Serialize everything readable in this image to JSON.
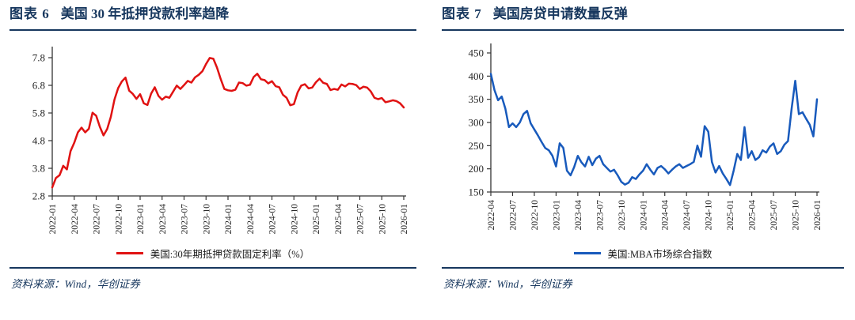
{
  "colors": {
    "title_navy": "#17375e",
    "series_red": "#e01212",
    "series_blue": "#185abc",
    "axis": "#333333"
  },
  "panels": [
    {
      "figure_no": "图表 6",
      "title": "美国 30 年抵押贷款利率趋降",
      "legend_label": "美国:30年期抵押贷款固定利率（%）",
      "source_note": "资料来源：Wind，华创证券"
    },
    {
      "figure_no": "图表 7",
      "title": "美国房贷申请数量反弹",
      "legend_label": "美国:MBA市场综合指数",
      "source_note": "资料来源：Wind，华创证券"
    }
  ],
  "chart_data": [
    {
      "type": "line",
      "title": "美国 30 年抵押贷款利率趋降",
      "xlabel": "",
      "ylabel": "",
      "grid": false,
      "legend_position": "bottom",
      "ylim": [
        2.8,
        7.8
      ],
      "y_tick_labels": [
        "2.8",
        "3.8",
        "4.8",
        "5.8",
        "6.8",
        "7.8"
      ],
      "x_tick_labels": [
        "2022-01",
        "2022-04",
        "2022-07",
        "2022-10",
        "2023-01",
        "2023-04",
        "2023-07",
        "2023-10",
        "2024-01",
        "2024-04",
        "2024-07",
        "2024-10",
        "2025-01",
        "2025-04",
        "2025-07",
        "2025-10",
        "2026-01"
      ],
      "x_range": [
        "2022-01",
        "2026-01"
      ],
      "series": [
        {
          "name": "美国:30年期抵押贷款固定利率（%）",
          "color": "#e01212",
          "values": [
            3.11,
            3.45,
            3.55,
            3.89,
            3.76,
            4.42,
            4.72,
            5.1,
            5.27,
            5.1,
            5.23,
            5.81,
            5.7,
            5.3,
            4.99,
            5.22,
            5.66,
            6.29,
            6.7,
            6.94,
            7.08,
            6.61,
            6.49,
            6.31,
            6.48,
            6.15,
            6.09,
            6.5,
            6.73,
            6.42,
            6.28,
            6.39,
            6.35,
            6.57,
            6.79,
            6.67,
            6.81,
            6.96,
            6.9,
            7.09,
            7.18,
            7.31,
            7.57,
            7.79,
            7.76,
            7.44,
            7.03,
            6.67,
            6.62,
            6.6,
            6.64,
            6.9,
            6.88,
            6.79,
            6.82,
            7.1,
            7.22,
            7.02,
            6.99,
            6.87,
            6.95,
            6.77,
            6.73,
            6.46,
            6.35,
            6.08,
            6.12,
            6.54,
            6.79,
            6.84,
            6.69,
            6.72,
            6.91,
            7.04,
            6.89,
            6.85,
            6.63,
            6.67,
            6.64,
            6.83,
            6.76,
            6.86,
            6.85,
            6.81,
            6.67,
            6.75,
            6.72,
            6.58,
            6.35,
            6.3,
            6.34,
            6.19,
            6.22,
            6.26,
            6.23,
            6.15,
            6.0
          ]
        }
      ]
    },
    {
      "type": "line",
      "title": "美国房贷申请数量反弹",
      "xlabel": "",
      "ylabel": "",
      "grid": false,
      "legend_position": "bottom",
      "ylim": [
        150,
        450
      ],
      "y_tick_labels": [
        "150",
        "200",
        "250",
        "300",
        "350",
        "400",
        "450"
      ],
      "x_tick_labels": [
        "2022-04",
        "2022-07",
        "2022-10",
        "2023-01",
        "2023-04",
        "2023-07",
        "2023-10",
        "2024-01",
        "2024-04",
        "2024-07",
        "2024-10",
        "2025-01",
        "2025-04",
        "2025-07",
        "2025-10",
        "2026-01"
      ],
      "x_range": [
        "2022-04",
        "2026-01"
      ],
      "series": [
        {
          "name": "美国:MBA市场综合指数",
          "color": "#185abc",
          "values": [
            405,
            370,
            348,
            356,
            330,
            290,
            298,
            290,
            300,
            318,
            325,
            298,
            285,
            272,
            258,
            245,
            240,
            228,
            205,
            255,
            245,
            196,
            186,
            204,
            228,
            214,
            205,
            226,
            208,
            222,
            228,
            210,
            202,
            194,
            198,
            186,
            172,
            166,
            170,
            182,
            178,
            188,
            196,
            210,
            198,
            188,
            202,
            206,
            199,
            190,
            198,
            205,
            210,
            202,
            206,
            210,
            215,
            250,
            226,
            292,
            280,
            215,
            192,
            206,
            190,
            178,
            165,
            196,
            232,
            219,
            290,
            224,
            238,
            219,
            225,
            240,
            235,
            248,
            255,
            232,
            238,
            252,
            260,
            330,
            390,
            318,
            322,
            308,
            295,
            270,
            350
          ]
        }
      ]
    }
  ]
}
